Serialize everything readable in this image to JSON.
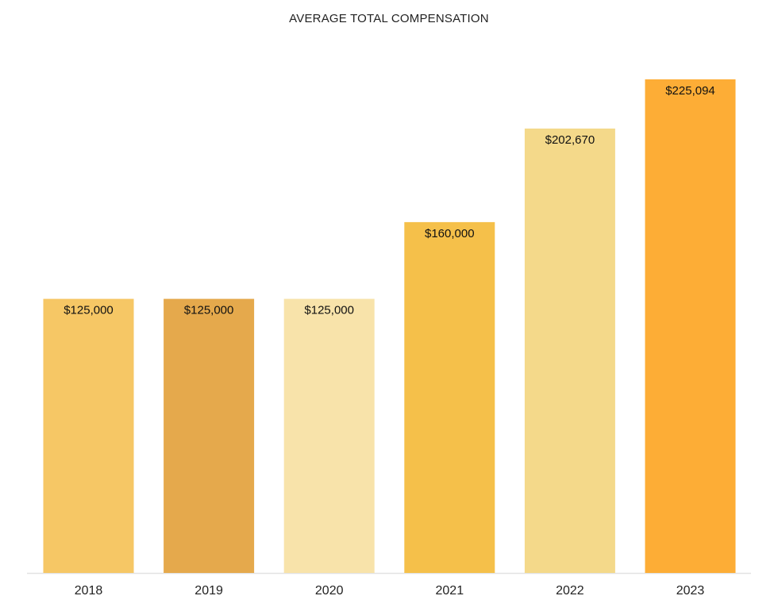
{
  "chart_data": {
    "type": "bar",
    "title": "AVERAGE TOTAL COMPENSATION",
    "categories": [
      "2018",
      "2019",
      "2020",
      "2021",
      "2022",
      "2023"
    ],
    "values": [
      125000,
      125000,
      125000,
      160000,
      202670,
      225094
    ],
    "data_labels": [
      "$125,000",
      "$125,000",
      "$125,000",
      "$160,000",
      "$202,670",
      "$225,094"
    ],
    "colors": [
      "#F6C765",
      "#E5A94C",
      "#F8E3AA",
      "#F5C04A",
      "#F4D98A",
      "#FDAD36"
    ],
    "xlabel": "",
    "ylabel": "",
    "ylim": [
      0,
      225094
    ],
    "grid": false,
    "legend": "none"
  }
}
